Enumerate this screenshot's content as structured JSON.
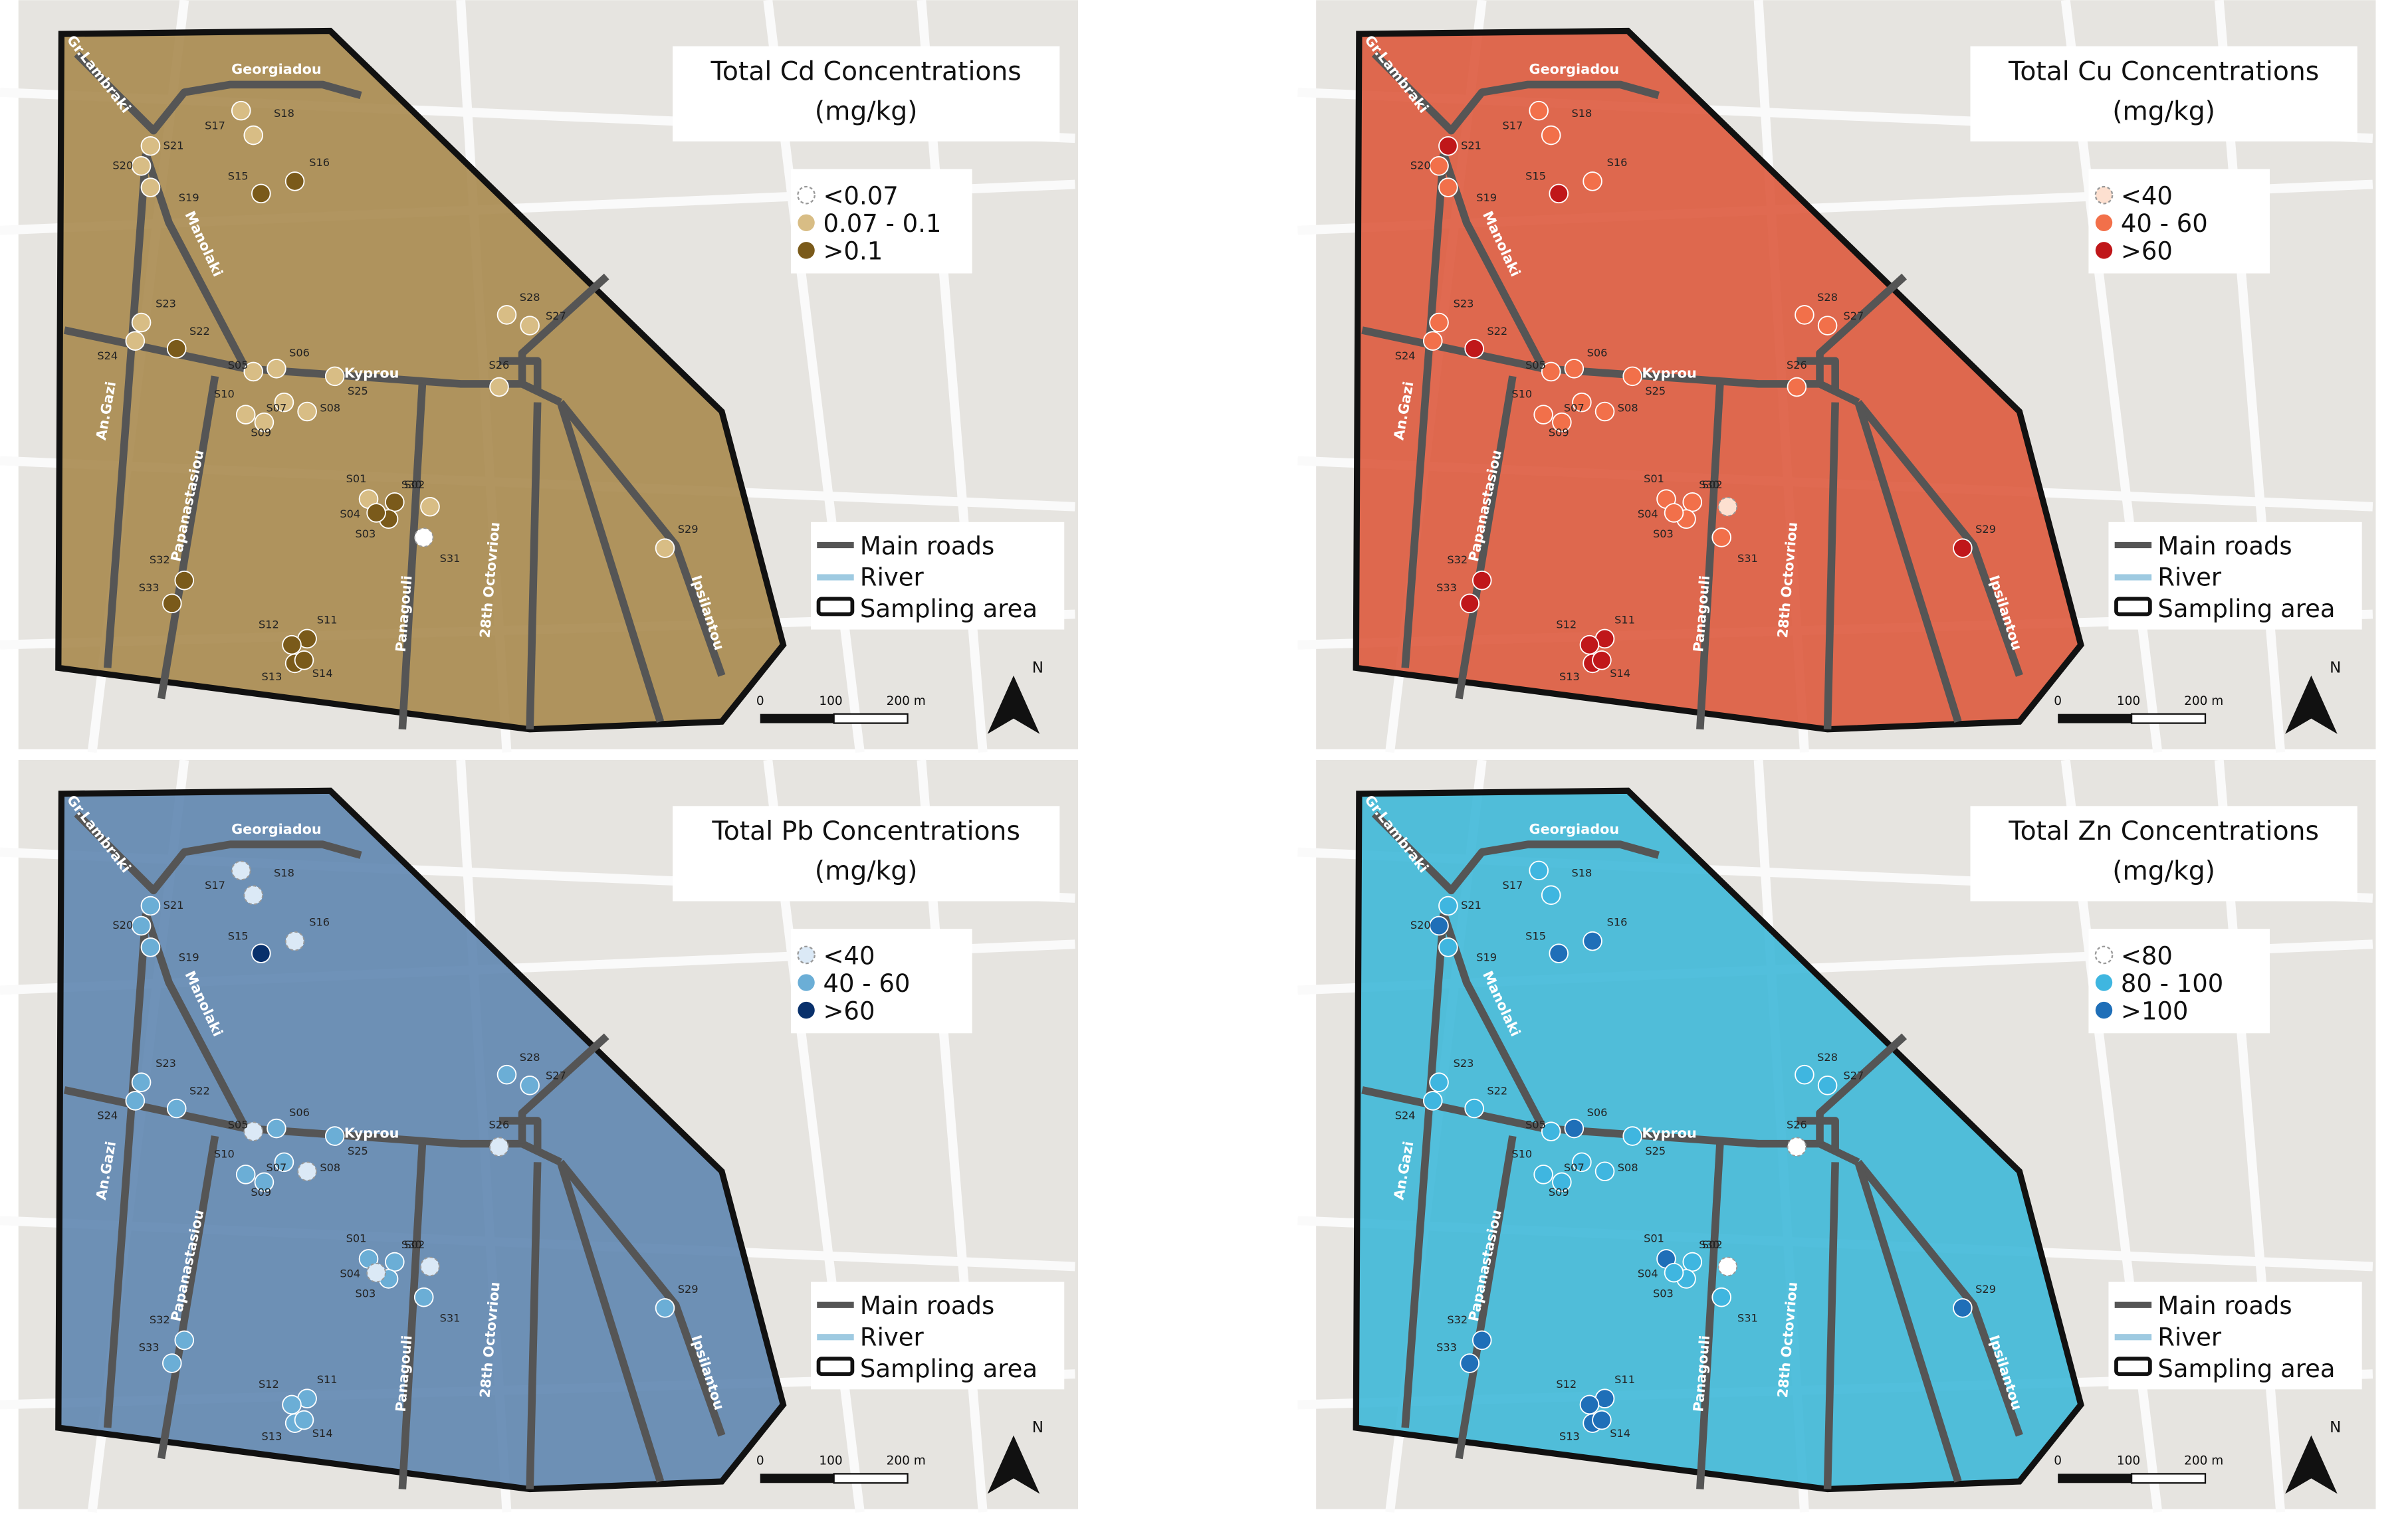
{
  "panels": [
    {
      "title": "Total Cd Concentrations",
      "unit": "(mg/kg)",
      "overlay": "#a8894f",
      "classes": [
        {
          "label": "<0.07",
          "color": "#ffffff"
        },
        {
          "label": "0.07 - 0.1",
          "color": "#d8bd85"
        },
        {
          "label": ">0.1",
          "color": "#7a5a1a"
        }
      ],
      "sample_class": [
        1,
        2,
        2,
        2,
        1,
        1,
        1,
        1,
        1,
        1,
        2,
        2,
        2,
        2,
        2,
        2,
        1,
        1,
        1,
        1,
        1,
        2,
        1,
        1,
        1,
        1,
        1,
        1,
        1,
        1,
        0,
        2,
        2
      ]
    },
    {
      "title": "Total Cu Concentrations",
      "unit": "(mg/kg)",
      "overlay": "#dd5a3e",
      "classes": [
        {
          "label": "<40",
          "color": "#fde0d0"
        },
        {
          "label": "40 - 60",
          "color": "#f2704a"
        },
        {
          "label": ">60",
          "color": "#c0171a"
        }
      ],
      "sample_class": [
        1,
        1,
        1,
        1,
        1,
        1,
        1,
        1,
        1,
        1,
        2,
        2,
        2,
        2,
        2,
        1,
        1,
        1,
        1,
        1,
        2,
        2,
        1,
        1,
        1,
        1,
        1,
        1,
        2,
        0,
        1,
        2,
        2
      ]
    },
    {
      "title": "Total Pb Concentrations",
      "unit": "(mg/kg)",
      "overlay": "#5f86b0",
      "classes": [
        {
          "label": "<40",
          "color": "#dbe9f6"
        },
        {
          "label": "40 - 60",
          "color": "#6baed6"
        },
        {
          "label": ">60",
          "color": "#08306b"
        }
      ],
      "sample_class": [
        1,
        1,
        1,
        0,
        0,
        1,
        1,
        0,
        1,
        1,
        1,
        1,
        1,
        1,
        2,
        0,
        0,
        0,
        1,
        1,
        1,
        1,
        1,
        1,
        1,
        0,
        1,
        1,
        1,
        0,
        1,
        1,
        1
      ]
    },
    {
      "title": "Total Zn Concentrations",
      "unit": "(mg/kg)",
      "overlay": "#3fb8d8",
      "classes": [
        {
          "label": "<80",
          "color": "#ffffff"
        },
        {
          "label": "80 - 100",
          "color": "#3fb6e0"
        },
        {
          "label": ">100",
          "color": "#1f6fb8"
        }
      ],
      "sample_class": [
        2,
        1,
        1,
        1,
        1,
        2,
        1,
        1,
        1,
        1,
        2,
        2,
        2,
        2,
        2,
        2,
        1,
        1,
        1,
        2,
        1,
        1,
        1,
        1,
        1,
        0,
        1,
        1,
        2,
        0,
        1,
        2,
        2
      ]
    }
  ],
  "samples": [
    "S01",
    "S02",
    "S03",
    "S04",
    "S05",
    "S06",
    "S07",
    "S08",
    "S09",
    "S10",
    "S11",
    "S12",
    "S13",
    "S14",
    "S15",
    "S16",
    "S17",
    "S18",
    "S19",
    "S20",
    "S21",
    "S22",
    "S23",
    "S24",
    "S25",
    "S26",
    "S27",
    "S28",
    "S29",
    "S30",
    "S31",
    "S32",
    "S33"
  ],
  "roads": [
    "Georgiadou",
    "Gr.Lambraki",
    "Manolaki",
    "Kyprou",
    "An.Gazi",
    "Papanastasiou",
    "Panagouli",
    "28th Octovriou",
    "Ipsilantou"
  ],
  "legend": [
    "Main roads",
    "River",
    "Sampling area"
  ],
  "scale": [
    "0",
    "100",
    "200 m"
  ],
  "north": "N"
}
